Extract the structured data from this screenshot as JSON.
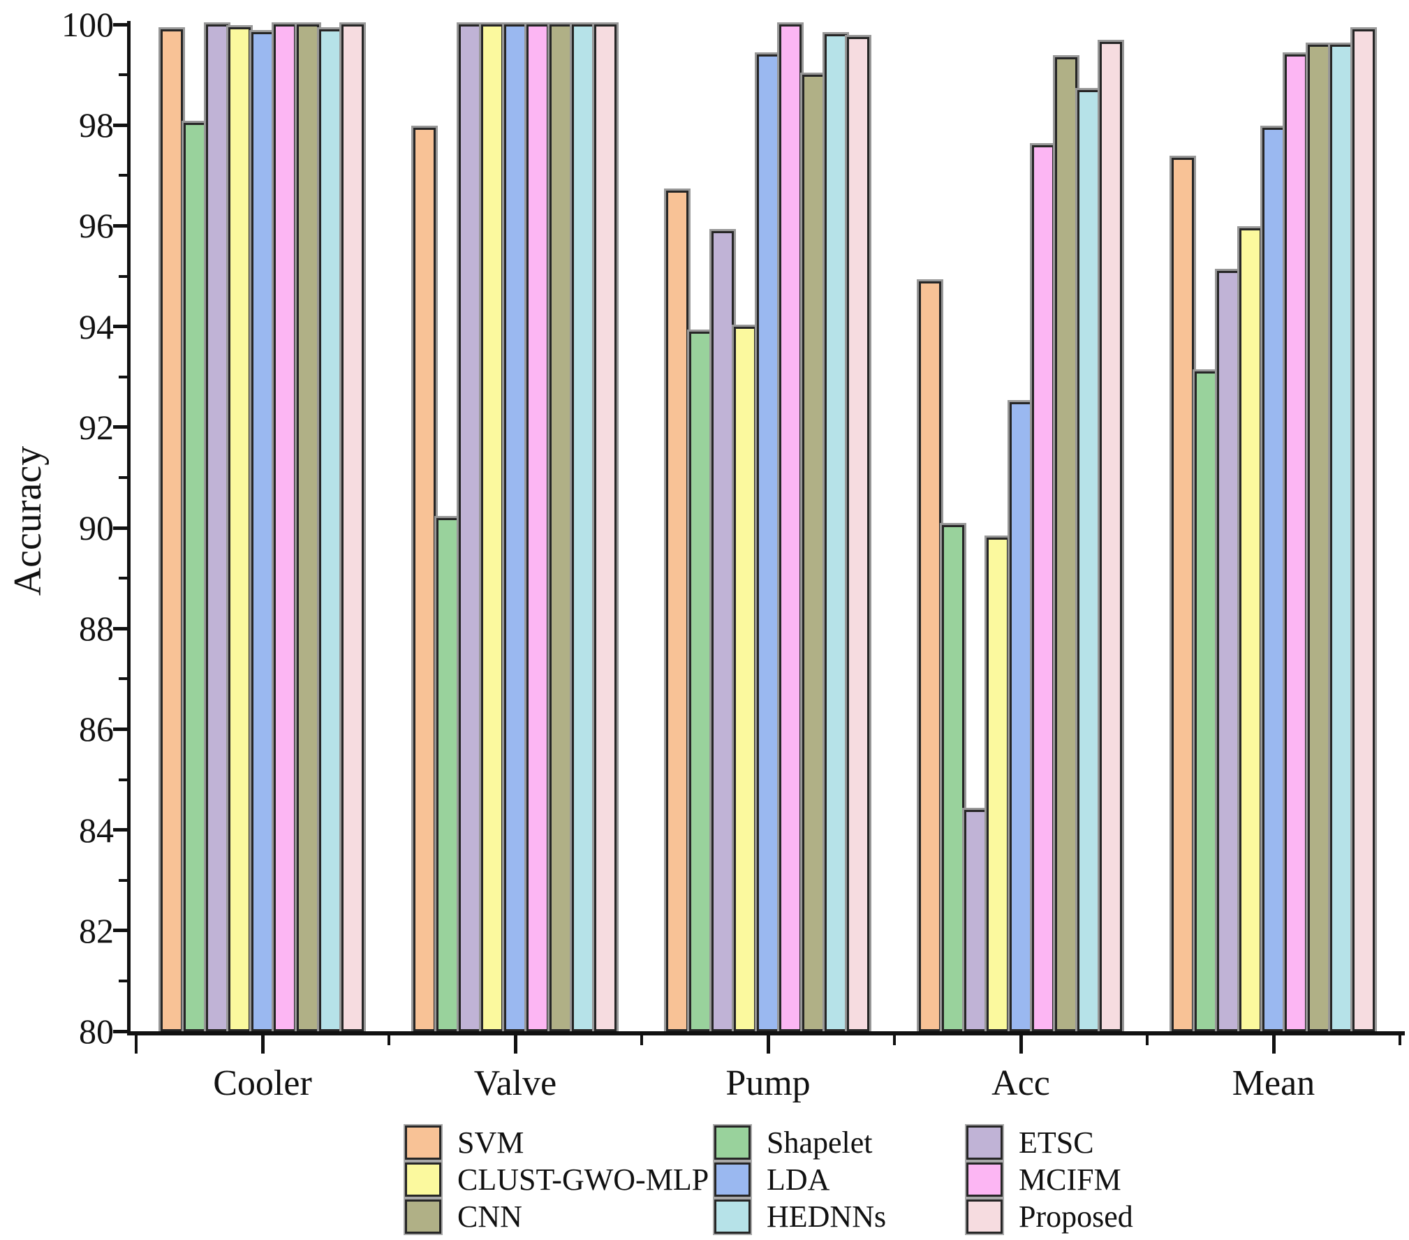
{
  "chart_data": {
    "type": "bar",
    "title": "",
    "xlabel": "",
    "ylabel": "Accuracy",
    "ylim": [
      80,
      100
    ],
    "grid": false,
    "y_axis": {
      "label": "Accuracy",
      "major_ticks": [
        80,
        82,
        84,
        86,
        88,
        90,
        92,
        94,
        96,
        98,
        100
      ],
      "minor_tick_step": 1
    },
    "categories": [
      "Cooler",
      "Valve",
      "Pump",
      "Acc",
      "Mean"
    ],
    "series": [
      {
        "name": "SVM",
        "color": "#F8C296",
        "values": [
          99.9,
          97.95,
          96.7,
          94.9,
          97.35
        ]
      },
      {
        "name": "Shapelet",
        "color": "#99D29C",
        "values": [
          98.05,
          90.2,
          93.9,
          90.05,
          93.1
        ]
      },
      {
        "name": "ETSC",
        "color": "#C0B3D6",
        "values": [
          100,
          100,
          95.9,
          84.4,
          95.1
        ]
      },
      {
        "name": "CLUST-GWO-MLP",
        "color": "#FBF99E",
        "values": [
          99.95,
          100,
          94.0,
          89.8,
          95.95
        ]
      },
      {
        "name": "LDA",
        "color": "#9AB8F0",
        "values": [
          99.85,
          100,
          99.4,
          92.5,
          97.95
        ]
      },
      {
        "name": "MCIFM",
        "color": "#FCB6F3",
        "values": [
          100,
          100,
          100,
          97.6,
          99.4
        ]
      },
      {
        "name": "CNN",
        "color": "#B0B086",
        "values": [
          100,
          100,
          99.0,
          99.35,
          99.6
        ]
      },
      {
        "name": "HEDNNs",
        "color": "#B6E2E8",
        "values": [
          99.9,
          100,
          99.8,
          98.7,
          99.6
        ]
      },
      {
        "name": "Proposed",
        "color": "#F6DCE0",
        "values": [
          100,
          100,
          99.75,
          99.65,
          99.9
        ]
      }
    ],
    "legend": {
      "position": "bottom",
      "columns": [
        [
          "SVM",
          "CLUST-GWO-MLP",
          "CNN"
        ],
        [
          "Shapelet",
          "LDA",
          "HEDNNs"
        ],
        [
          "ETSC",
          "MCIFM",
          "Proposed"
        ]
      ]
    },
    "bar_outline_color": "#262626",
    "bar_shadow_color": "#989898",
    "axis_color": "#111111"
  }
}
